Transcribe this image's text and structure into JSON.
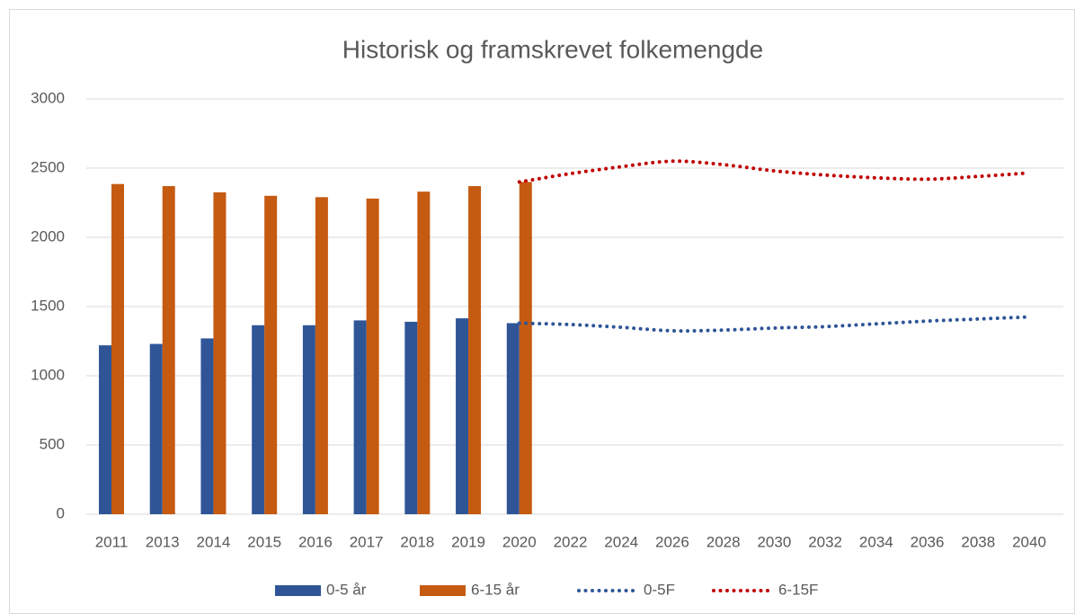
{
  "chart_data": {
    "type": "bar-line",
    "title": "Historisk og framskrevet folkemengde",
    "categories": [
      "2011",
      "2013",
      "2014",
      "2015",
      "2016",
      "2017",
      "2018",
      "2019",
      "2020",
      "2022",
      "2024",
      "2026",
      "2028",
      "2030",
      "2032",
      "2034",
      "2036",
      "2038",
      "2040"
    ],
    "series": [
      {
        "name": "0-5 år",
        "type": "bar",
        "color": "#2f5597",
        "values": [
          1220,
          1230,
          1270,
          1365,
          1365,
          1400,
          1390,
          1415,
          1380,
          null,
          null,
          null,
          null,
          null,
          null,
          null,
          null,
          null,
          null
        ]
      },
      {
        "name": "6-15 år",
        "type": "bar",
        "color": "#c55a11",
        "values": [
          2385,
          2370,
          2325,
          2300,
          2290,
          2280,
          2330,
          2370,
          2400,
          null,
          null,
          null,
          null,
          null,
          null,
          null,
          null,
          null,
          null
        ]
      },
      {
        "name": "0-5F",
        "type": "line",
        "color": "#2f5597",
        "values": [
          null,
          null,
          null,
          null,
          null,
          null,
          null,
          null,
          1380,
          1370,
          1350,
          1325,
          1330,
          1345,
          1355,
          1375,
          1395,
          1410,
          1425
        ]
      },
      {
        "name": "6-15F",
        "type": "line",
        "color": "#c00000",
        "values": [
          null,
          null,
          null,
          null,
          null,
          null,
          null,
          null,
          2400,
          2460,
          2510,
          2550,
          2525,
          2480,
          2450,
          2430,
          2420,
          2440,
          2465
        ]
      }
    ],
    "ylim": [
      0,
      3000
    ],
    "yticks": [
      0,
      500,
      1000,
      1500,
      2000,
      2500,
      3000
    ],
    "grid": true,
    "legend": "bottom"
  }
}
